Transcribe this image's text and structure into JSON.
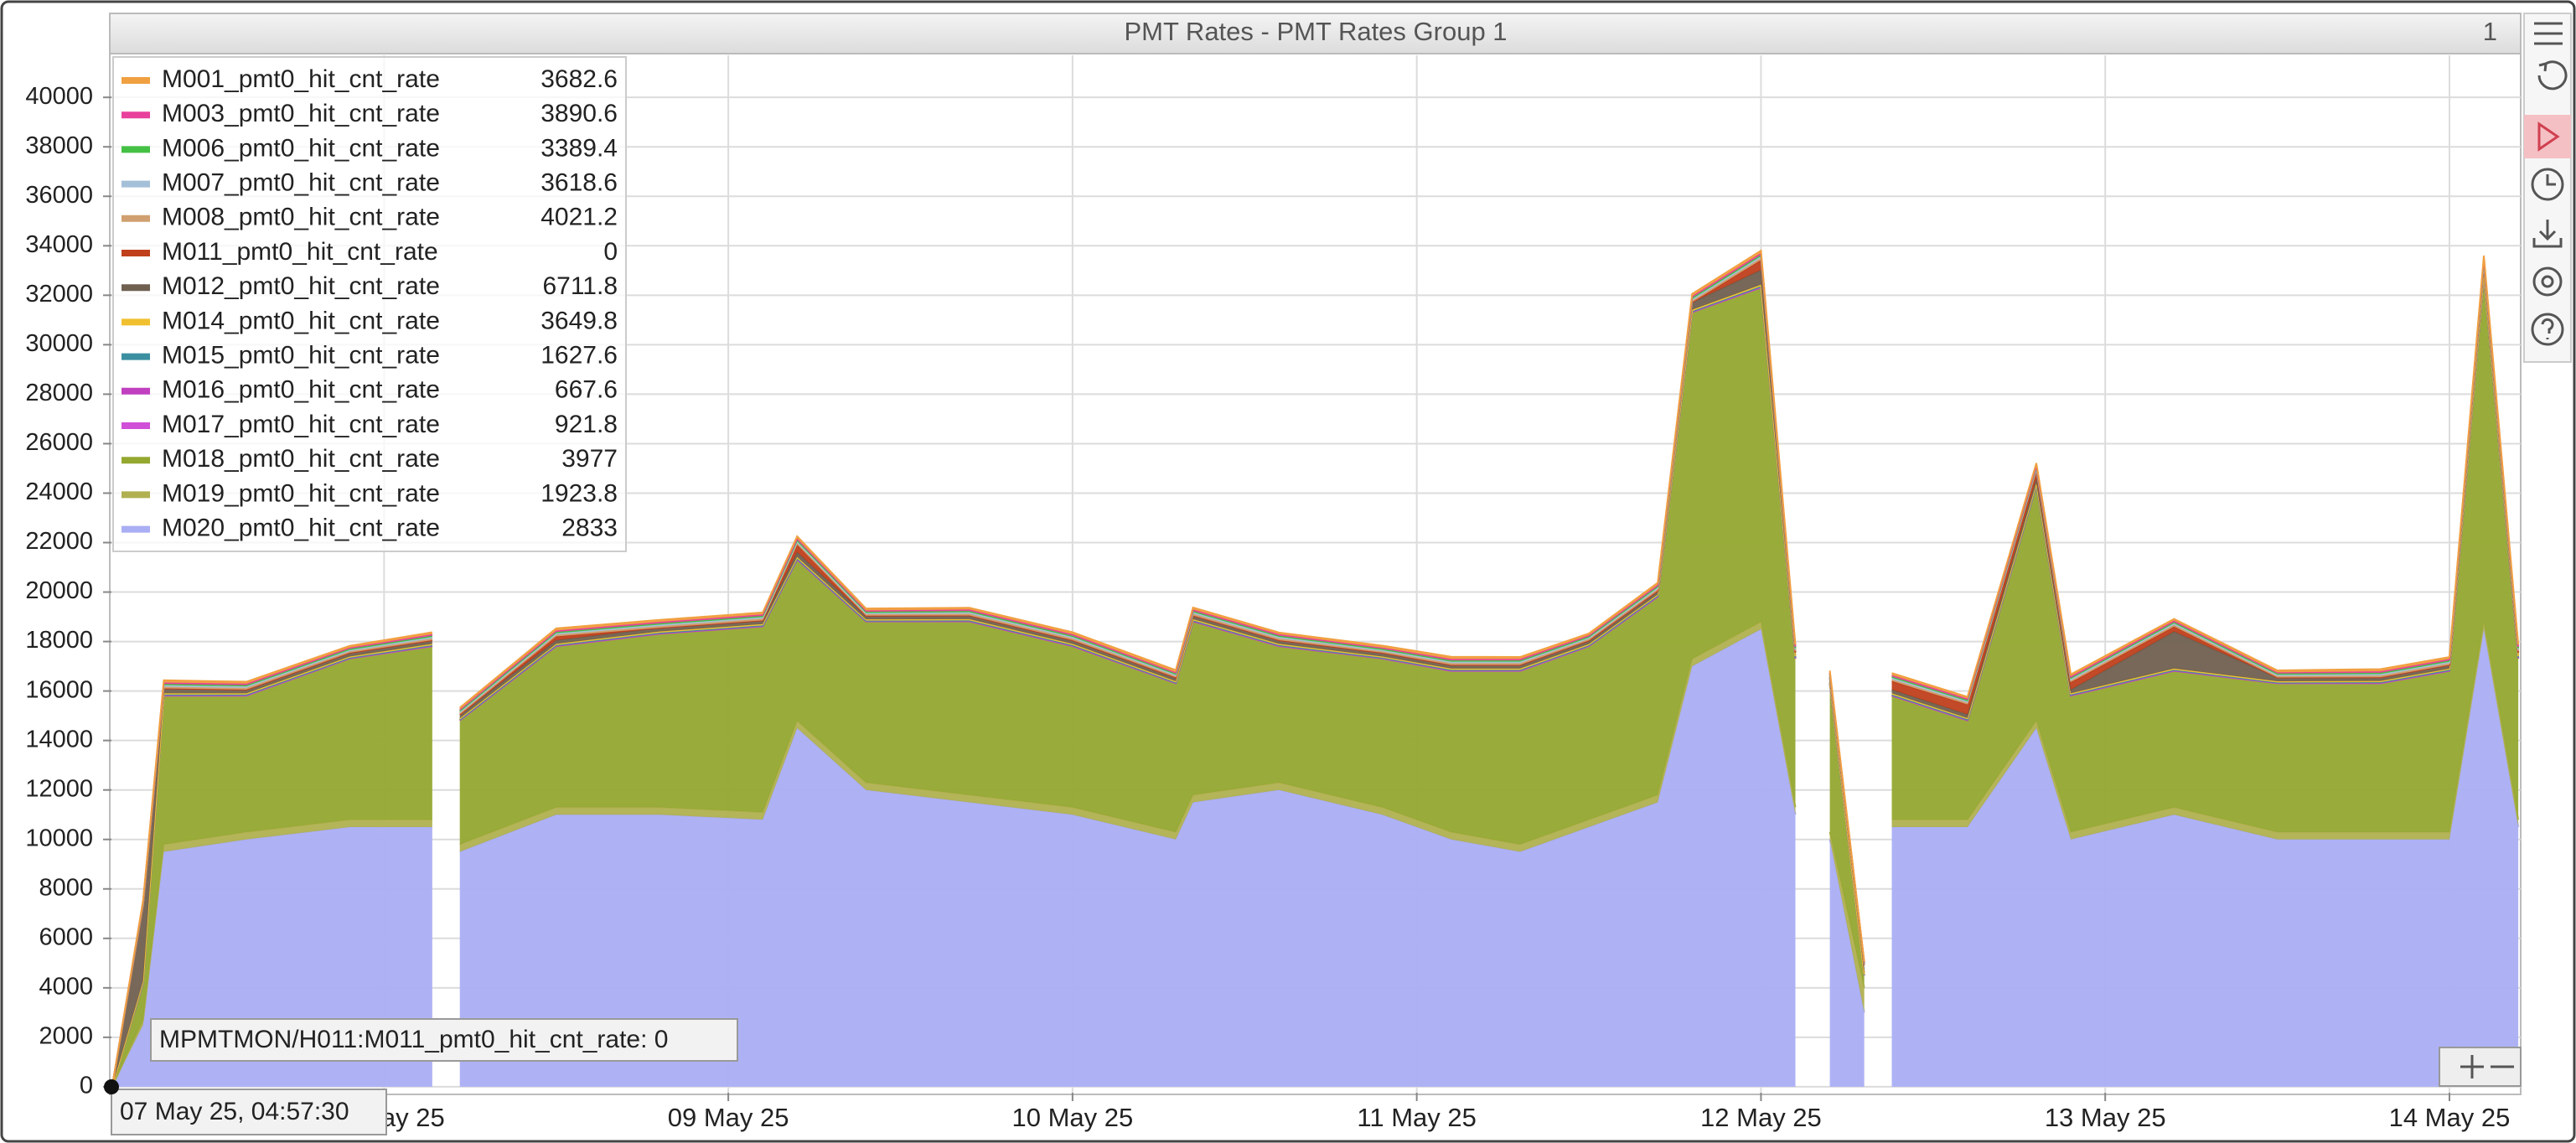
{
  "chart_data": {
    "type": "stacked-area",
    "title": "PMT Rates - PMT Rates Group 1",
    "panel_index": "1",
    "hover_tooltip": "MPMTMON/H011:M011_pmt0_hit_cnt_rate: 0",
    "hover_time": "07 May 25, 04:57:30",
    "x": [
      7.21,
      7.3,
      7.36,
      7.6,
      7.9,
      8.14,
      8.16,
      8.22,
      8.5,
      8.8,
      9.1,
      9.2,
      9.4,
      9.7,
      10.0,
      10.3,
      10.35,
      10.6,
      10.9,
      11.1,
      11.3,
      11.5,
      11.7,
      11.8,
      12.0,
      12.1,
      12.13,
      12.2,
      12.3,
      12.31,
      12.38,
      12.6,
      12.8,
      12.9,
      13.2,
      13.5,
      13.8,
      14.0,
      14.1,
      14.2
    ],
    "xlim": [
      7.208,
      14.207
    ],
    "xticks": [
      {
        "value": 8,
        "label": "08 May 25"
      },
      {
        "value": 9,
        "label": "09 May 25"
      },
      {
        "value": 10,
        "label": "10 May 25"
      },
      {
        "value": 11,
        "label": "11 May 25"
      },
      {
        "value": 12,
        "label": "12 May 25"
      },
      {
        "value": 13,
        "label": "13 May 25"
      },
      {
        "value": 14,
        "label": "14 May 25"
      }
    ],
    "ylim": [
      -240,
      41700
    ],
    "yticks": [
      0,
      2000,
      4000,
      6000,
      8000,
      10000,
      12000,
      14000,
      16000,
      18000,
      20000,
      22000,
      24000,
      26000,
      28000,
      30000,
      32000,
      34000,
      36000,
      38000,
      40000
    ],
    "grid": true,
    "legend_position": "upper left",
    "series": [
      {
        "name": "M001_pmt0_hit_cnt_rate",
        "legend_value": 3682.6,
        "color": "#f0a040",
        "values": [
          0,
          60,
          90,
          80,
          70,
          80,
          null,
          70,
          90,
          80,
          80,
          90,
          80,
          70,
          80,
          90,
          80,
          70,
          80,
          90,
          80,
          70,
          80,
          90,
          100,
          80,
          null,
          70,
          30,
          null,
          80,
          70,
          90,
          80,
          70,
          80,
          90,
          80,
          100,
          80
        ]
      },
      {
        "name": "M003_pmt0_hit_cnt_rate",
        "legend_value": 3890.6,
        "color": "#e8409c",
        "values": [
          0,
          50,
          60,
          60,
          50,
          60,
          null,
          50,
          60,
          60,
          60,
          60,
          50,
          60,
          60,
          50,
          60,
          60,
          50,
          60,
          60,
          50,
          60,
          60,
          70,
          60,
          null,
          50,
          20,
          null,
          60,
          60,
          50,
          60,
          60,
          50,
          60,
          60,
          70,
          60
        ]
      },
      {
        "name": "M006_pmt0_hit_cnt_rate",
        "legend_value": 3389.4,
        "color": "#44c044",
        "values": [
          0,
          40,
          50,
          50,
          50,
          50,
          null,
          50,
          50,
          50,
          50,
          60,
          50,
          50,
          50,
          50,
          50,
          50,
          50,
          50,
          50,
          50,
          50,
          60,
          60,
          50,
          null,
          50,
          20,
          null,
          50,
          50,
          60,
          50,
          50,
          50,
          50,
          50,
          60,
          50
        ]
      },
      {
        "name": "M007_pmt0_hit_cnt_rate",
        "legend_value": 3618.6,
        "color": "#a4c0d8",
        "values": [
          0,
          50,
          60,
          60,
          50,
          60,
          null,
          50,
          60,
          60,
          60,
          60,
          50,
          60,
          60,
          50,
          60,
          60,
          50,
          60,
          60,
          50,
          60,
          60,
          70,
          60,
          null,
          50,
          20,
          null,
          60,
          60,
          50,
          60,
          60,
          50,
          60,
          60,
          70,
          60
        ]
      },
      {
        "name": "M008_pmt0_hit_cnt_rate",
        "legend_value": 4021.2,
        "color": "#d0a070",
        "values": [
          0,
          60,
          70,
          70,
          60,
          70,
          null,
          60,
          70,
          70,
          70,
          70,
          60,
          70,
          70,
          60,
          70,
          70,
          60,
          70,
          70,
          60,
          70,
          70,
          80,
          70,
          null,
          60,
          30,
          null,
          70,
          70,
          60,
          70,
          70,
          60,
          70,
          70,
          80,
          70
        ]
      },
      {
        "name": "M011_pmt0_hit_cnt_rate",
        "legend_value": 0,
        "color": "#c0401c",
        "values": [
          0,
          0,
          0,
          0,
          0,
          0,
          null,
          0,
          150,
          0,
          0,
          300,
          0,
          0,
          0,
          0,
          0,
          0,
          0,
          0,
          0,
          0,
          0,
          0,
          400,
          0,
          null,
          0,
          0,
          null,
          350,
          400,
          300,
          300,
          200,
          0,
          0,
          0,
          0,
          0
        ]
      },
      {
        "name": "M012_pmt0_hit_cnt_rate",
        "legend_value": 6711.8,
        "color": "#706050",
        "values": [
          0,
          3000,
          200,
          150,
          150,
          150,
          null,
          150,
          150,
          150,
          150,
          200,
          150,
          150,
          150,
          150,
          150,
          150,
          150,
          150,
          150,
          150,
          150,
          300,
          600,
          150,
          null,
          150,
          400,
          null,
          150,
          150,
          200,
          150,
          1500,
          150,
          150,
          150,
          300,
          150
        ]
      },
      {
        "name": "M014_pmt0_hit_cnt_rate",
        "legend_value": 3649.8,
        "color": "#f0c030",
        "values": [
          0,
          40,
          50,
          50,
          50,
          50,
          null,
          50,
          50,
          50,
          50,
          60,
          50,
          50,
          50,
          50,
          50,
          50,
          50,
          50,
          50,
          50,
          50,
          60,
          60,
          50,
          null,
          50,
          20,
          null,
          50,
          50,
          60,
          50,
          50,
          50,
          50,
          50,
          60,
          50
        ]
      },
      {
        "name": "M015_pmt0_hit_cnt_rate",
        "legend_value": 1627.6,
        "color": "#3a8fa0",
        "values": [
          0,
          20,
          30,
          30,
          20,
          30,
          null,
          20,
          30,
          30,
          30,
          30,
          20,
          30,
          30,
          20,
          30,
          30,
          20,
          30,
          30,
          20,
          30,
          30,
          40,
          30,
          null,
          20,
          10,
          null,
          30,
          30,
          20,
          30,
          30,
          20,
          30,
          30,
          40,
          30
        ]
      },
      {
        "name": "M016_pmt0_hit_cnt_rate",
        "legend_value": 667.6,
        "color": "#c040c0",
        "values": [
          0,
          10,
          10,
          10,
          10,
          10,
          null,
          10,
          10,
          10,
          10,
          10,
          10,
          10,
          10,
          10,
          10,
          10,
          10,
          10,
          10,
          10,
          10,
          10,
          10,
          10,
          null,
          10,
          5,
          null,
          10,
          10,
          10,
          10,
          10,
          10,
          10,
          10,
          10,
          10
        ]
      },
      {
        "name": "M017_pmt0_hit_cnt_rate",
        "legend_value": 921.8,
        "color": "#d050d8",
        "values": [
          0,
          15,
          15,
          15,
          15,
          15,
          null,
          15,
          15,
          15,
          15,
          15,
          15,
          15,
          15,
          15,
          15,
          15,
          15,
          15,
          15,
          15,
          15,
          15,
          15,
          15,
          null,
          15,
          5,
          null,
          15,
          15,
          15,
          15,
          15,
          15,
          15,
          15,
          15,
          15
        ]
      },
      {
        "name": "M018_pmt0_hit_cnt_rate",
        "legend_value": 3977,
        "color": "#94a830",
        "values": [
          0,
          1500,
          6000,
          5500,
          6500,
          7000,
          null,
          5000,
          6500,
          7000,
          7500,
          6500,
          6500,
          7000,
          6500,
          6000,
          7000,
          5500,
          6000,
          6500,
          7000,
          7000,
          8000,
          14000,
          13500,
          6000,
          null,
          6000,
          500,
          null,
          5000,
          4000,
          9500,
          5500,
          5500,
          6000,
          6000,
          6500,
          14000,
          6500
        ]
      },
      {
        "name": "M019_pmt0_hit_cnt_rate",
        "legend_value": 1923.8,
        "color": "#b0b050",
        "values": [
          0,
          200,
          300,
          300,
          300,
          300,
          null,
          300,
          300,
          300,
          300,
          300,
          300,
          300,
          300,
          300,
          300,
          300,
          300,
          300,
          300,
          300,
          300,
          300,
          300,
          300,
          null,
          300,
          1000,
          null,
          300,
          300,
          300,
          300,
          300,
          300,
          300,
          300,
          300,
          300
        ]
      },
      {
        "name": "M020_pmt0_hit_cnt_rate",
        "legend_value": 2833,
        "color": "#aaaef4",
        "values": [
          0,
          2500,
          9500,
          10000,
          10500,
          10500,
          null,
          9500,
          11000,
          11000,
          10800,
          14500,
          12000,
          11500,
          11000,
          10000,
          11500,
          12000,
          11000,
          10000,
          9500,
          10500,
          11500,
          17000,
          18500,
          11000,
          null,
          10000,
          3000,
          null,
          10500,
          10500,
          14500,
          10000,
          11000,
          10000,
          10000,
          10000,
          18500,
          10500
        ]
      }
    ]
  }
}
